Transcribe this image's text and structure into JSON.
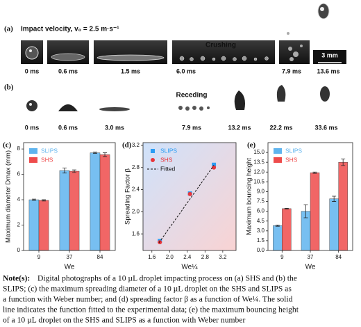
{
  "photos": {
    "a": {
      "label": "(a)",
      "title": "Impact velocity, v₀ = 2.5 m·s⁻¹",
      "annotation": "Crushing",
      "scale": "3 mm",
      "times": [
        "0 ms",
        "0.6 ms",
        "1.5 ms",
        "6.0 ms",
        "7.9 ms",
        "13.6 ms"
      ]
    },
    "b": {
      "label": "(b)",
      "annotation": "Receding",
      "times": [
        "0 ms",
        "0.6 ms",
        "3.0 ms",
        "7.9 ms",
        "13.2 ms",
        "22.2 ms",
        "33.6 ms"
      ]
    }
  },
  "chart_data": [
    {
      "type": "bar",
      "panel": "(c)",
      "xlabel": "We",
      "ylabel": "Maximum diameter Dmax (mm)",
      "categories": [
        "9",
        "37",
        "84"
      ],
      "ylim": [
        0,
        8.5
      ],
      "yticks": [
        0,
        2,
        4,
        6,
        8
      ],
      "legend": "upper left",
      "series": [
        {
          "name": "SLIPS",
          "color": "#5fb4ee",
          "values": [
            4.0,
            6.3,
            7.7
          ],
          "errors": [
            0.05,
            0.2,
            0.05
          ]
        },
        {
          "name": "SHS",
          "color": "#ee4b4b",
          "values": [
            3.95,
            6.25,
            7.55
          ],
          "errors": [
            0.05,
            0.1,
            0.15
          ]
        }
      ]
    },
    {
      "type": "scatter",
      "panel": "(d)",
      "xlabel": "We¼",
      "ylabel": "Spreading Factor β",
      "xlim": [
        1.4,
        3.5
      ],
      "ylim": [
        1.3,
        3.25
      ],
      "xticks": [
        1.6,
        {
          "value": 2,
          "label": "2.0"
        },
        2.4,
        2.8,
        3.2
      ],
      "yticks": [
        1.6,
        {
          "value": 2,
          "label": "2.0"
        },
        2.4,
        2.8,
        3.2
      ],
      "legend": "upper left",
      "series": [
        {
          "name": "SLIPS",
          "type": "scatter",
          "marker": "square",
          "color": "#2a9df4",
          "x": [
            1.78,
            2.46,
            3.0
          ],
          "values": [
            1.47,
            2.33,
            2.85
          ]
        },
        {
          "name": "SHS",
          "type": "scatter",
          "marker": "circle",
          "color": "#e8363b",
          "x": [
            1.78,
            2.46,
            3.0
          ],
          "values": [
            1.45,
            2.32,
            2.8
          ]
        },
        {
          "name": "Fitted",
          "type": "line",
          "dash": true,
          "color": "#111111",
          "x": [
            1.76,
            3.0
          ],
          "values": [
            1.44,
            2.84
          ]
        }
      ]
    },
    {
      "type": "bar",
      "panel": "(e)",
      "xlabel": "We",
      "ylabel": "Maximum bouncing height",
      "categories": [
        "9",
        "37",
        "84"
      ],
      "ylim": [
        0,
        16.5
      ],
      "legend": "upper left",
      "yticks": [
        {
          "value": 0,
          "label": "0.0"
        },
        1.5,
        {
          "value": 3,
          "label": "3.0"
        },
        4.5,
        {
          "value": 6,
          "label": "6.0"
        },
        7.5,
        {
          "value": 9,
          "label": "9.0"
        },
        10.5,
        {
          "value": 12,
          "label": "12.0"
        },
        13.5,
        {
          "value": 15,
          "label": "15.0"
        }
      ],
      "series": [
        {
          "name": "SLIPS",
          "color": "#5fb4ee",
          "values": [
            3.8,
            6.0,
            7.9
          ],
          "errors": [
            0.1,
            1.0,
            0.4
          ]
        },
        {
          "name": "SHS",
          "color": "#ee4b4b",
          "values": [
            6.4,
            11.9,
            13.5
          ],
          "errors": [
            0.05,
            0.1,
            0.5
          ]
        }
      ]
    }
  ],
  "note": {
    "label": "Note(s):",
    "lines": [
      "Digital photographs of a 10 µL droplet impacting process on (a) SHS and (b) the",
      "SLIPS; (c) the maximum spreading diameter of a 10 µL droplet on the SHS and SLIPS as",
      "a function with Weber number; and (d) spreading factor β as a function of We¼. The solid",
      "line indicates the function fitted to the experimental data; (e) the maximum bouncing height",
      "of a 10 µL droplet on the SHS and SLIPS as a function with Weber number"
    ]
  }
}
